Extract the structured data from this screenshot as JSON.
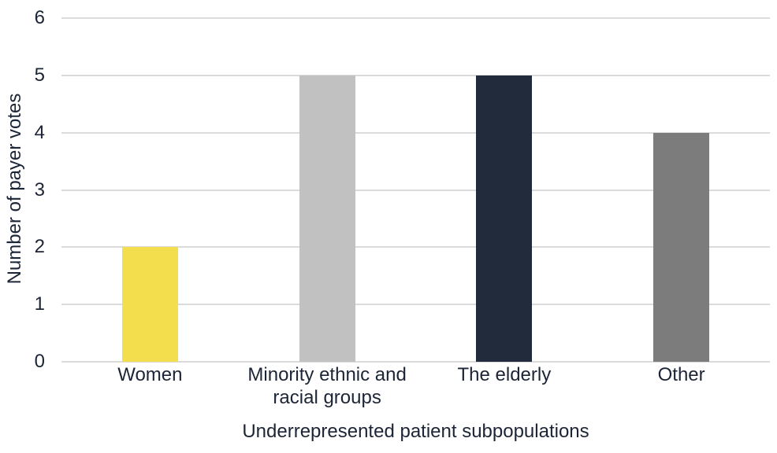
{
  "chart_data": {
    "type": "bar",
    "title": "",
    "xlabel": "Underrepresented patient subpopulations",
    "ylabel": "Number of payer votes",
    "categories": [
      "Women",
      "Minority ethnic and\nracial groups",
      "The elderly",
      "Other"
    ],
    "values": [
      2,
      5,
      5,
      4
    ],
    "bar_colors": [
      "#F3DE4D",
      "#C1C1C1",
      "#212B3C",
      "#7C7C7C"
    ],
    "ylim": [
      0,
      6
    ],
    "yticks": [
      0,
      1,
      2,
      3,
      4,
      5,
      6
    ],
    "grid": true,
    "legend": "none",
    "gridline_color": "#DBDBDB",
    "text_color": "#1C2536",
    "background_color": "#FFFFFF"
  }
}
